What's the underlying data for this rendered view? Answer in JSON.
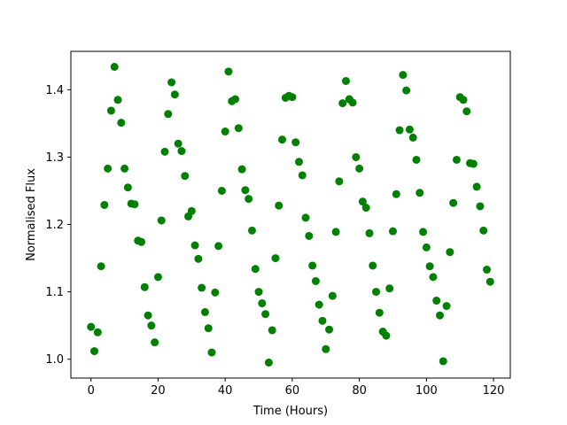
{
  "chart_data": {
    "type": "scatter",
    "title": "",
    "xlabel": "Time (Hours)",
    "ylabel": "Normalised Flux",
    "xlim": [
      -6,
      125
    ],
    "ylim": [
      0.972,
      1.457
    ],
    "xticks": [
      0,
      20,
      40,
      60,
      80,
      100,
      120
    ],
    "yticks": [
      1.0,
      1.1,
      1.2,
      1.3,
      1.4
    ],
    "xtick_labels": [
      "0",
      "20",
      "40",
      "60",
      "80",
      "100",
      "120"
    ],
    "ytick_labels": [
      "1.0",
      "1.1",
      "1.2",
      "1.3",
      "1.4"
    ],
    "grid": false,
    "marker_color": "#008000",
    "series": [
      {
        "x": [
          0,
          1,
          2,
          3,
          4,
          5,
          6,
          7,
          8,
          9,
          10,
          11,
          12,
          13,
          14,
          15,
          16,
          17,
          18,
          19,
          20,
          21,
          22,
          23,
          24,
          25,
          26,
          27,
          28,
          29,
          30,
          31,
          32,
          33,
          34,
          35,
          36,
          37,
          38,
          39,
          40,
          41,
          42,
          43,
          44,
          45,
          46,
          47,
          48,
          49,
          50,
          51,
          52,
          53,
          54,
          55,
          56,
          57,
          58,
          59,
          60,
          61,
          62,
          63,
          64,
          65,
          66,
          67,
          68,
          69,
          70,
          71,
          72,
          73,
          74,
          75,
          76,
          77,
          78,
          79,
          80,
          81,
          82,
          83,
          84,
          85,
          86,
          87,
          88,
          89,
          90,
          91,
          92,
          93,
          94,
          95,
          96,
          97,
          98,
          99,
          100,
          101,
          102,
          103,
          104,
          105,
          106,
          107,
          108,
          109,
          110,
          111,
          112,
          113,
          114,
          115,
          116,
          117,
          118,
          119
        ],
        "y": [
          1.048,
          1.012,
          1.04,
          1.138,
          1.229,
          1.283,
          1.369,
          1.434,
          1.385,
          1.351,
          1.283,
          1.255,
          1.231,
          1.23,
          1.176,
          1.174,
          1.107,
          1.065,
          1.05,
          1.025,
          1.122,
          1.206,
          1.308,
          1.364,
          1.411,
          1.393,
          1.32,
          1.309,
          1.272,
          1.212,
          1.22,
          1.169,
          1.149,
          1.106,
          1.07,
          1.046,
          1.01,
          1.099,
          1.168,
          1.25,
          1.338,
          1.427,
          1.383,
          1.386,
          1.343,
          1.282,
          1.251,
          1.238,
          1.191,
          1.134,
          1.1,
          1.083,
          1.067,
          0.995,
          1.043,
          1.15,
          1.228,
          1.326,
          1.388,
          1.391,
          1.389,
          1.322,
          1.293,
          1.273,
          1.21,
          1.183,
          1.139,
          1.116,
          1.081,
          1.057,
          1.015,
          1.044,
          1.094,
          1.189,
          1.264,
          1.38,
          1.413,
          1.386,
          1.381,
          1.3,
          1.283,
          1.234,
          1.225,
          1.187,
          1.139,
          1.1,
          1.069,
          1.041,
          1.035,
          1.105,
          1.19,
          1.245,
          1.34,
          1.422,
          1.399,
          1.341,
          1.329,
          1.296,
          1.247,
          1.189,
          1.166,
          1.138,
          1.122,
          1.087,
          1.065,
          0.997,
          1.079,
          1.159,
          1.232,
          1.296,
          1.389,
          1.385,
          1.368,
          1.291,
          1.29,
          1.256,
          1.227,
          1.191,
          1.133,
          1.115
        ]
      }
    ]
  }
}
